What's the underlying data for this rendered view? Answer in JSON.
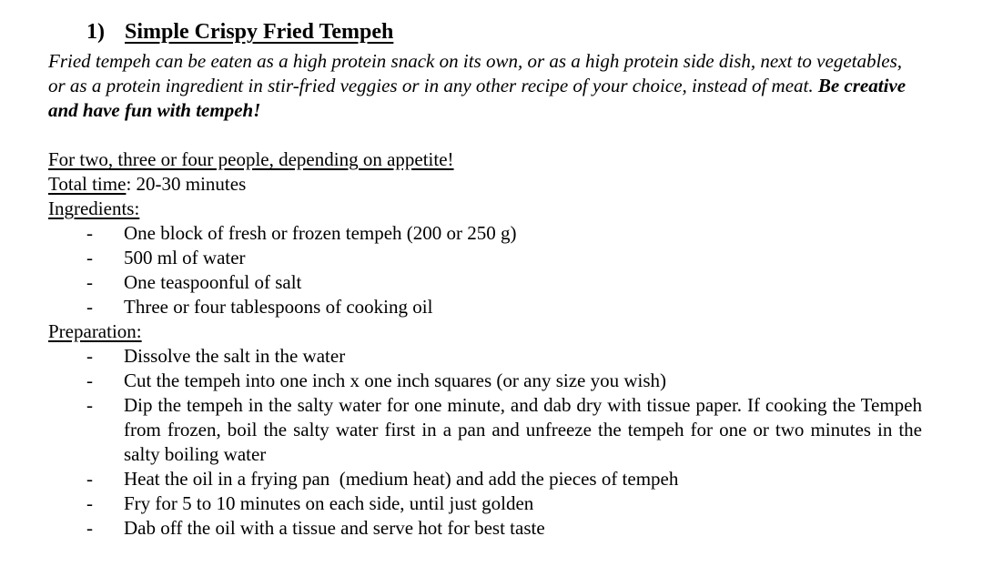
{
  "page": {
    "background": "#ffffff",
    "text_color": "#000000"
  },
  "document": {
    "bullet_marker": "-",
    "heading": {
      "number": "1)",
      "title": "Simple Crispy Fried Tempeh"
    },
    "intro": {
      "text": "Fried tempeh can be eaten as a high protein snack on its own, or as a high protein side dish, next to vegetables, or as a protein ingredient in stir-fried veggies or in any other recipe of your choice, instead of meat. ",
      "emphasis": "Be creative and have fun with tempeh!"
    },
    "serving_note": "For two, three or four people, depending on appetite!",
    "total_time": {
      "label": "Total time",
      "value": ": 20-30 minutes"
    },
    "ingredients_heading": "Ingredients:",
    "ingredients": [
      "One block of fresh or frozen tempeh (200 or 250 g)",
      "500 ml of water",
      "One teaspoonful of salt",
      "Three or four tablespoons of cooking oil"
    ],
    "preparation_heading": "Preparation:",
    "preparation_steps": [
      "Dissolve the salt in the water",
      "Cut the tempeh into one inch x one inch squares (or any size you wish)",
      "Dip the tempeh in the salty water for one minute, and dab dry with tissue paper. If cooking the Tempeh from frozen, boil the salty water first in a pan and unfreeze the tempeh for one or two minutes in the salty boiling water",
      "Heat the oil in a frying pan  (medium heat) and add the pieces of tempeh",
      "Fry for 5 to 10 minutes on each side, until just golden",
      "Dab off the oil with a tissue and serve hot for best taste"
    ]
  }
}
